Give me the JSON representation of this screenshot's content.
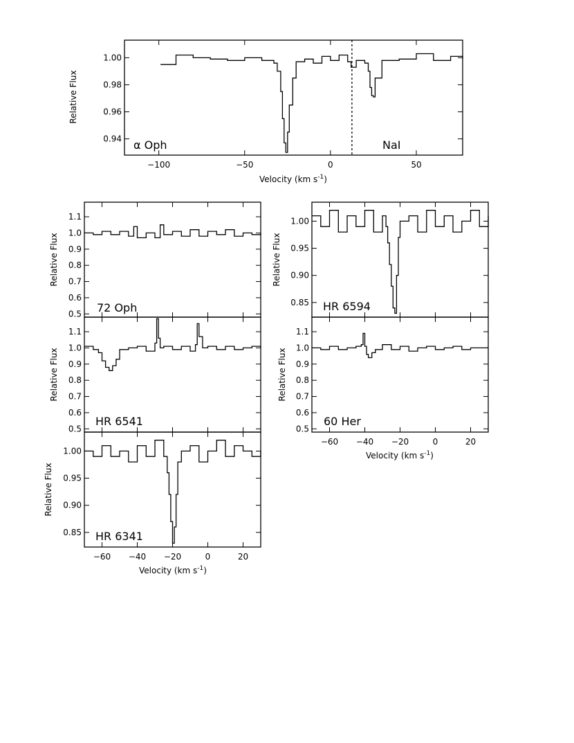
{
  "chart_data": [
    {
      "id": "alpha-oph",
      "type": "line",
      "star_label": "α Oph",
      "line_label": "NaI",
      "xlabel": "Velocity (km s",
      "xlabel_sup": "-1",
      "xlabel_close": ")",
      "ylabel": "Relative Flux",
      "xlim": [
        -120,
        77
      ],
      "ylim": [
        0.928,
        1.013
      ],
      "xticks": [
        -100,
        -50,
        0,
        50
      ],
      "xtick_labels": [
        "−100",
        "−50",
        "0",
        "50"
      ],
      "yticks": [
        0.94,
        0.96,
        0.98,
        1.0
      ],
      "ytick_labels": [
        "0.94",
        "0.96",
        "0.98",
        "1.00"
      ],
      "marker_velocity": 12.5,
      "series": [
        {
          "x": [
            -99,
            -90,
            -80,
            -70,
            -60,
            -50,
            -40,
            -33,
            -31,
            -29,
            -28,
            -27,
            -26,
            -25,
            -24,
            -22,
            -20,
            -15,
            -10,
            -5,
            0,
            5,
            10,
            12,
            15,
            20,
            22,
            23,
            24,
            25,
            26,
            30,
            40,
            50,
            60,
            70,
            77
          ],
          "y": [
            0.995,
            1.002,
            1.0,
            0.999,
            0.998,
            1.0,
            0.998,
            0.996,
            0.99,
            0.975,
            0.955,
            0.937,
            0.93,
            0.945,
            0.965,
            0.985,
            0.997,
            0.999,
            0.996,
            1.001,
            0.998,
            1.002,
            0.997,
            0.993,
            0.998,
            0.996,
            0.99,
            0.978,
            0.972,
            0.971,
            0.985,
            0.998,
            0.999,
            1.003,
            0.998,
            1.001,
            0.999
          ]
        }
      ]
    },
    {
      "id": "72-oph",
      "type": "line",
      "star_label": "72 Oph",
      "ylabel": "Relative Flux",
      "xlim": [
        -70,
        30
      ],
      "ylim": [
        0.48,
        1.19
      ],
      "yticks": [
        0.5,
        0.6,
        0.7,
        0.8,
        0.9,
        1.0,
        1.1
      ],
      "ytick_labels": [
        "0.5",
        "0.6",
        "0.7",
        "0.8",
        "0.9",
        "1.0",
        "1.1"
      ],
      "series": [
        {
          "x": [
            -70,
            -65,
            -60,
            -55,
            -50,
            -45,
            -42,
            -40,
            -35,
            -30,
            -27,
            -25,
            -20,
            -15,
            -10,
            -5,
            0,
            5,
            10,
            15,
            20,
            25,
            30
          ],
          "y": [
            1.0,
            0.99,
            1.01,
            0.99,
            1.01,
            0.98,
            1.04,
            0.97,
            1.0,
            0.97,
            1.05,
            0.99,
            1.01,
            0.98,
            1.02,
            0.98,
            1.01,
            0.99,
            1.02,
            0.98,
            1.0,
            0.99,
            1.0
          ]
        }
      ]
    },
    {
      "id": "hr-6541",
      "type": "line",
      "star_label": "HR 6541",
      "ylabel": "Relative Flux",
      "xlim": [
        -70,
        30
      ],
      "ylim": [
        0.48,
        1.19
      ],
      "yticks": [
        0.5,
        0.6,
        0.7,
        0.8,
        0.9,
        1.0,
        1.1
      ],
      "ytick_labels": [
        "0.5",
        "0.6",
        "0.7",
        "0.8",
        "0.9",
        "1.0",
        "1.1"
      ],
      "series": [
        {
          "x": [
            -70,
            -65,
            -62,
            -60,
            -58,
            -56,
            -54,
            -52,
            -50,
            -45,
            -40,
            -35,
            -30,
            -29,
            -28,
            -27,
            -25,
            -20,
            -15,
            -10,
            -7,
            -6,
            -5,
            -3,
            0,
            5,
            10,
            15,
            20,
            25,
            30
          ],
          "y": [
            1.01,
            0.99,
            0.97,
            0.92,
            0.88,
            0.86,
            0.89,
            0.93,
            0.99,
            1.0,
            1.01,
            0.98,
            1.03,
            1.18,
            1.06,
            1.0,
            1.01,
            0.99,
            1.01,
            0.98,
            1.02,
            1.15,
            1.07,
            1.0,
            1.01,
            0.99,
            1.01,
            0.99,
            1.0,
            1.01,
            1.0
          ]
        }
      ]
    },
    {
      "id": "hr-6341",
      "type": "line",
      "star_label": "HR 6341",
      "xlabel": "Velocity (km s",
      "xlabel_sup": "-1",
      "xlabel_close": ")",
      "ylabel": "Relative Flux",
      "xlim": [
        -70,
        30
      ],
      "ylim": [
        0.823,
        1.035
      ],
      "xticks": [
        -60,
        -40,
        -20,
        0,
        20
      ],
      "xtick_labels": [
        "−60",
        "−40",
        "−20",
        "0",
        "20"
      ],
      "yticks": [
        0.85,
        0.9,
        0.95,
        1.0
      ],
      "ytick_labels": [
        "0.85",
        "0.90",
        "0.95",
        "1.00"
      ],
      "series": [
        {
          "x": [
            -70,
            -65,
            -60,
            -55,
            -50,
            -45,
            -40,
            -35,
            -30,
            -25,
            -23,
            -22,
            -21,
            -20,
            -19,
            -18,
            -17,
            -15,
            -10,
            -5,
            0,
            5,
            10,
            15,
            20,
            25,
            30
          ],
          "y": [
            1.0,
            0.99,
            1.01,
            0.99,
            1.0,
            0.98,
            1.01,
            0.99,
            1.02,
            0.99,
            0.96,
            0.92,
            0.87,
            0.83,
            0.86,
            0.92,
            0.98,
            1.0,
            1.01,
            0.98,
            1.0,
            1.02,
            0.99,
            1.01,
            1.0,
            0.99,
            1.0
          ]
        }
      ]
    },
    {
      "id": "hr-6594",
      "type": "line",
      "star_label": "HR 6594",
      "ylabel": "Relative Flux",
      "xlim": [
        -70,
        30
      ],
      "ylim": [
        0.823,
        1.035
      ],
      "yticks": [
        0.85,
        0.9,
        0.95,
        1.0
      ],
      "ytick_labels": [
        "0.85",
        "0.90",
        "0.95",
        "1.00"
      ],
      "series": [
        {
          "x": [
            -70,
            -65,
            -60,
            -55,
            -50,
            -45,
            -40,
            -35,
            -30,
            -28,
            -27,
            -26,
            -25,
            -24,
            -23,
            -22,
            -21,
            -20,
            -15,
            -10,
            -5,
            0,
            5,
            10,
            15,
            20,
            25,
            30
          ],
          "y": [
            1.01,
            0.99,
            1.02,
            0.98,
            1.01,
            0.99,
            1.02,
            0.98,
            1.01,
            0.99,
            0.96,
            0.92,
            0.88,
            0.84,
            0.83,
            0.9,
            0.97,
            1.0,
            1.01,
            0.98,
            1.02,
            0.99,
            1.01,
            0.98,
            1.0,
            1.02,
            0.99,
            1.01
          ]
        }
      ]
    },
    {
      "id": "60-her",
      "type": "line",
      "star_label": "60 Her",
      "xlabel": "Velocity (km s",
      "xlabel_sup": "-1",
      "xlabel_close": ")",
      "ylabel": "Relative Flux",
      "xlim": [
        -70,
        30
      ],
      "ylim": [
        0.48,
        1.19
      ],
      "xticks": [
        -60,
        -40,
        -20,
        0,
        20
      ],
      "xtick_labels": [
        "−60",
        "−40",
        "−20",
        "0",
        "20"
      ],
      "yticks": [
        0.5,
        0.6,
        0.7,
        0.8,
        0.9,
        1.0,
        1.1
      ],
      "ytick_labels": [
        "0.5",
        "0.6",
        "0.7",
        "0.8",
        "0.9",
        "1.0",
        "1.1"
      ],
      "series": [
        {
          "x": [
            -70,
            -65,
            -60,
            -55,
            -50,
            -45,
            -42,
            -41,
            -40,
            -39,
            -38,
            -36,
            -34,
            -30,
            -25,
            -20,
            -15,
            -10,
            -5,
            0,
            5,
            10,
            15,
            20,
            25,
            30
          ],
          "y": [
            1.0,
            0.99,
            1.01,
            0.99,
            1.0,
            1.01,
            1.02,
            1.09,
            1.01,
            0.96,
            0.94,
            0.97,
            0.99,
            1.02,
            0.99,
            1.01,
            0.98,
            1.0,
            1.01,
            0.99,
            1.0,
            1.01,
            0.99,
            1.0,
            1.0,
            1.0
          ]
        }
      ]
    }
  ]
}
